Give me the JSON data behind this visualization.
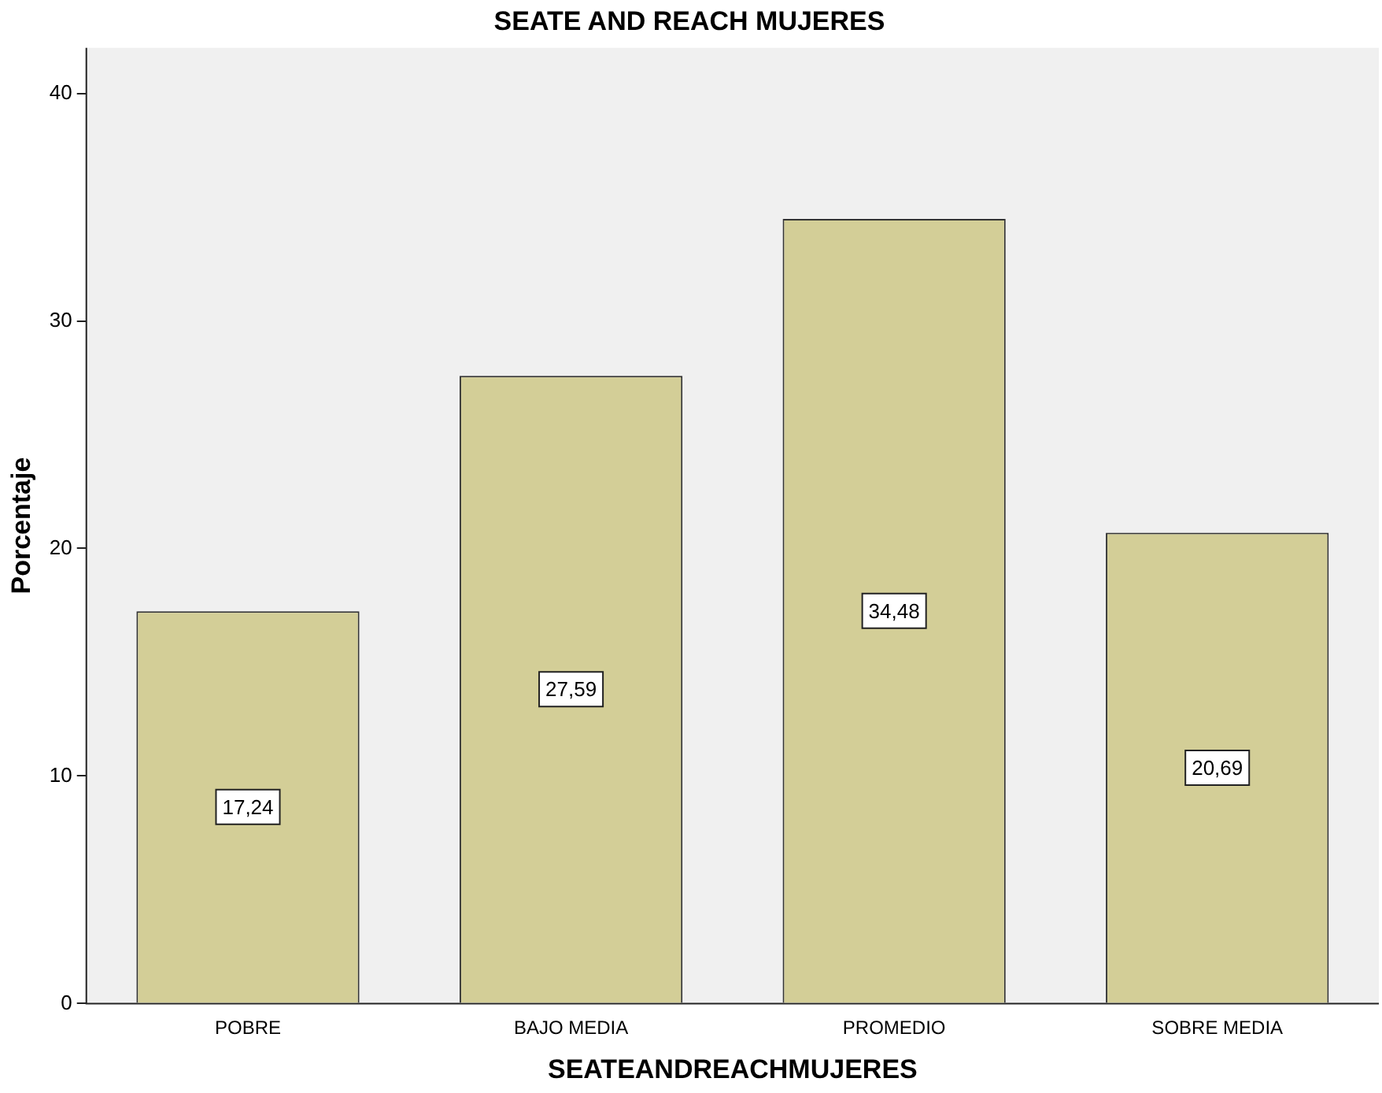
{
  "chart_data": {
    "type": "bar",
    "title": "SEATE AND REACH MUJERES",
    "xlabel": "SEATEANDREACHMUJERES",
    "ylabel": "Porcentaje",
    "categories": [
      "POBRE",
      "BAJO MEDIA",
      "PROMEDIO",
      "SOBRE MEDIA"
    ],
    "values": [
      17.24,
      27.59,
      34.48,
      20.69
    ],
    "value_labels": [
      "17,24",
      "27,59",
      "34,48",
      "20,69"
    ],
    "color": "#d3ce97",
    "ylim": [
      0,
      42
    ],
    "yticks": [
      0,
      10,
      20,
      30,
      40
    ],
    "grid": false,
    "legend": false
  }
}
